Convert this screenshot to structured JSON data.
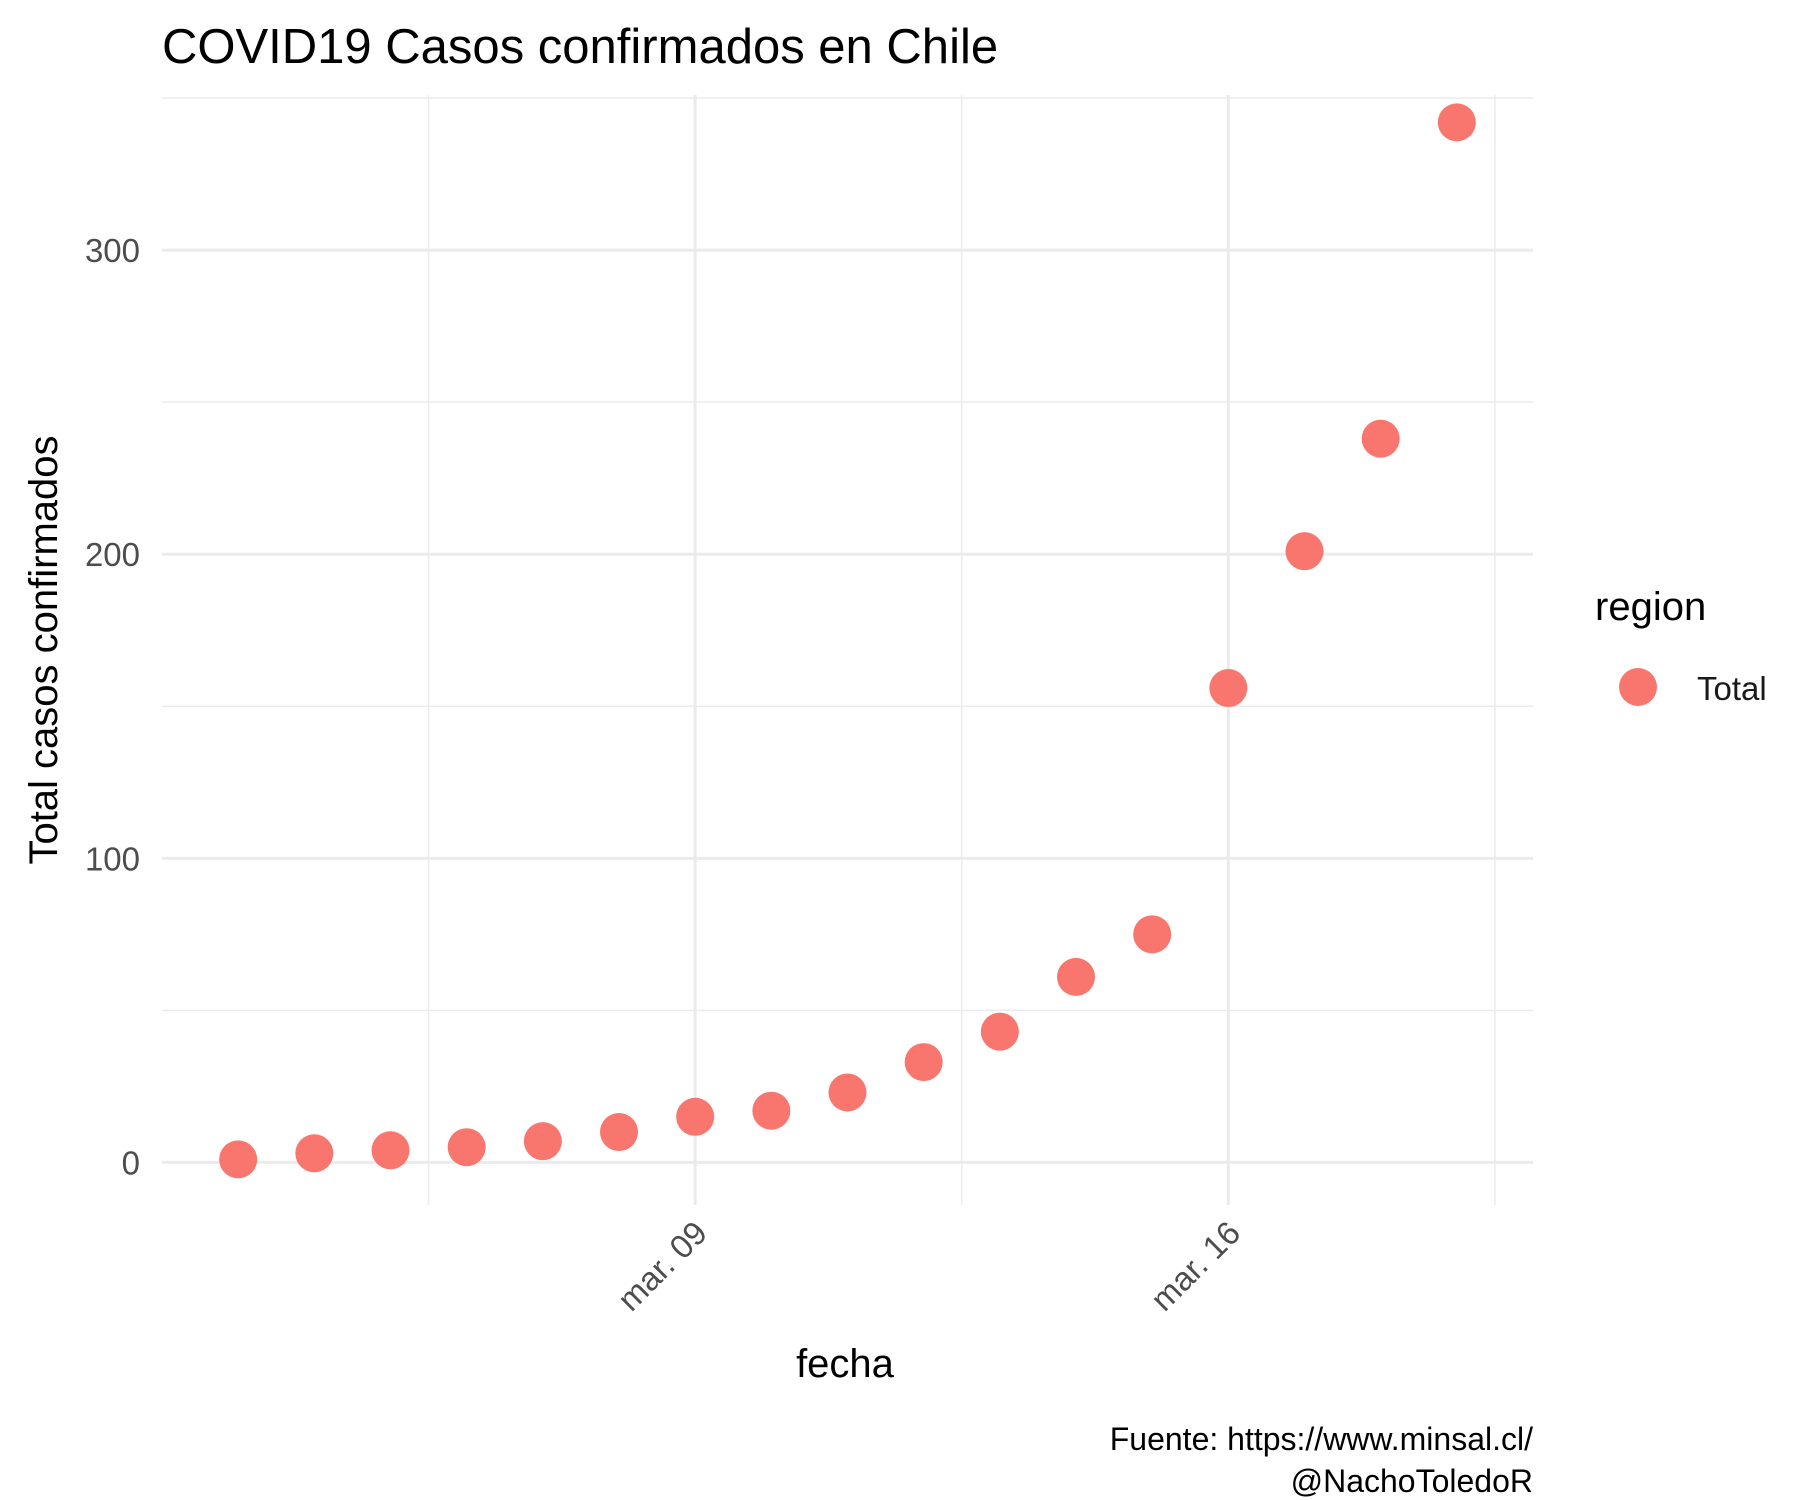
{
  "chart_data": {
    "type": "scatter",
    "title": "COVID19 Casos confirmados en Chile",
    "xlabel": "fecha",
    "ylabel": "Total casos confirmados",
    "caption_lines": [
      "Fuente: https://www.minsal.cl/",
      "@NachoToledoR"
    ],
    "x_ticks": [
      {
        "date": "2020-03-09",
        "label": "mar. 09"
      },
      {
        "date": "2020-03-16",
        "label": "mar. 16"
      }
    ],
    "y_ticks": [
      0,
      100,
      200,
      300
    ],
    "xlim": [
      "2020-03-02",
      "2020-03-20"
    ],
    "ylim": [
      -14,
      351
    ],
    "grid": true,
    "legend": {
      "title": "region",
      "position": "right",
      "entries": [
        "Total"
      ]
    },
    "series": [
      {
        "name": "Total",
        "color": "#F8766D",
        "points": [
          {
            "x": "2020-03-03",
            "y": 1
          },
          {
            "x": "2020-03-04",
            "y": 3
          },
          {
            "x": "2020-03-05",
            "y": 4
          },
          {
            "x": "2020-03-06",
            "y": 5
          },
          {
            "x": "2020-03-07",
            "y": 7
          },
          {
            "x": "2020-03-08",
            "y": 10
          },
          {
            "x": "2020-03-09",
            "y": 15
          },
          {
            "x": "2020-03-10",
            "y": 17
          },
          {
            "x": "2020-03-11",
            "y": 23
          },
          {
            "x": "2020-03-12",
            "y": 33
          },
          {
            "x": "2020-03-13",
            "y": 43
          },
          {
            "x": "2020-03-14",
            "y": 61
          },
          {
            "x": "2020-03-15",
            "y": 75
          },
          {
            "x": "2020-03-16",
            "y": 156
          },
          {
            "x": "2020-03-17",
            "y": 201
          },
          {
            "x": "2020-03-18",
            "y": 238
          },
          {
            "x": "2020-03-19",
            "y": 342
          }
        ]
      }
    ]
  }
}
